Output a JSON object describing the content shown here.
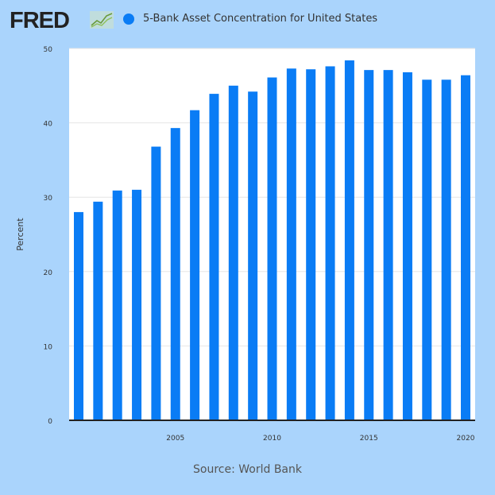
{
  "logo": {
    "text": "FRED"
  },
  "legend": {
    "label": "5-Bank Asset Concentration for United States",
    "color": "#0a7cf5"
  },
  "source": "Source: World Bank",
  "chart_data": {
    "type": "bar",
    "title": "5-Bank Asset Concentration for United States",
    "ylabel": "Percent",
    "xlabel": "",
    "ylim": [
      0,
      50
    ],
    "yticks": [
      0,
      10,
      20,
      30,
      40,
      50
    ],
    "xticks": [
      2005,
      2010,
      2015,
      2020
    ],
    "grid": true,
    "legend_position": "top-left",
    "bar_color": "#0a7cf5",
    "categories": [
      2000,
      2001,
      2002,
      2003,
      2004,
      2005,
      2006,
      2007,
      2008,
      2009,
      2010,
      2011,
      2012,
      2013,
      2014,
      2015,
      2016,
      2017,
      2018,
      2019,
      2020
    ],
    "values": [
      28.0,
      29.4,
      30.9,
      31.0,
      36.8,
      39.3,
      41.7,
      43.9,
      45.0,
      44.2,
      46.1,
      47.3,
      47.2,
      47.6,
      48.4,
      47.1,
      47.1,
      46.8,
      45.8,
      45.8,
      46.4
    ]
  }
}
